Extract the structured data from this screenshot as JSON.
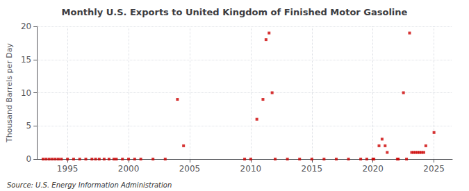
{
  "chart_data": {
    "type": "scatter",
    "title": "Monthly U.S. Exports to United Kingdom of Finished Motor Gasoline",
    "ylabel": "Thousand Barrels per Day",
    "annotation": "Source: U.S. Energy Information Administration",
    "color": "#cc0000",
    "marker": "square",
    "grid": true,
    "xlim": [
      1992.5,
      2026.5
    ],
    "xticks": [
      1995,
      2000,
      2005,
      2010,
      2015,
      2020,
      2025
    ],
    "ylim": [
      0,
      20
    ],
    "yticks": [
      0,
      5,
      10,
      15,
      20
    ],
    "x": [
      1993.0,
      1993.25,
      1993.5,
      1993.75,
      1994.0,
      1994.25,
      1994.5,
      1995.0,
      1995.5,
      1996.0,
      1996.5,
      1997.0,
      1997.3,
      1997.6,
      1998.0,
      1998.4,
      1998.8,
      1999.0,
      1999.5,
      2000.0,
      2000.5,
      2001.0,
      2002.0,
      2003.0,
      2004.0,
      2004.5,
      2009.5,
      2010.0,
      2010.5,
      2011.0,
      2011.25,
      2011.5,
      2011.75,
      2012.0,
      2013.0,
      2014.0,
      2015.0,
      2016.0,
      2017.0,
      2018.0,
      2019.0,
      2019.5,
      2020.0,
      2020.08,
      2020.5,
      2020.75,
      2021.0,
      2021.17,
      2022.0,
      2022.08,
      2022.5,
      2022.75,
      2023.0,
      2023.17,
      2023.33,
      2023.5,
      2023.67,
      2023.83,
      2024.0,
      2024.17,
      2024.33,
      2025.0
    ],
    "values": [
      0.0,
      0.0,
      0.0,
      0.0,
      0.0,
      0.0,
      0.0,
      0.0,
      0.0,
      0.0,
      0.0,
      0.0,
      0.0,
      0.0,
      0.0,
      0.0,
      0.0,
      0.0,
      0.0,
      0.0,
      0.0,
      0.0,
      0.0,
      0.0,
      9.0,
      2.0,
      0.0,
      0.0,
      6.0,
      9.0,
      18.0,
      19.0,
      10.0,
      0.0,
      0.0,
      0.0,
      0.0,
      0.0,
      0.0,
      0.0,
      0.0,
      0.0,
      0.0,
      0.0,
      2.0,
      3.0,
      2.0,
      1.0,
      0.0,
      0.0,
      10.0,
      0.0,
      19.0,
      1.0,
      1.0,
      1.0,
      1.0,
      1.0,
      1.0,
      1.0,
      2.0,
      4.0
    ]
  }
}
